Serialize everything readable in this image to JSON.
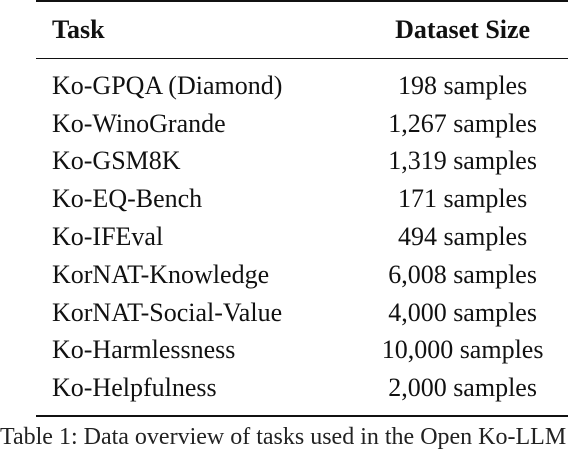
{
  "table": {
    "headers": {
      "task": "Task",
      "size": "Dataset Size"
    },
    "rows": [
      {
        "task": "Ko-GPQA (Diamond)",
        "size": "198 samples"
      },
      {
        "task": "Ko-WinoGrande",
        "size": "1,267 samples"
      },
      {
        "task": "Ko-GSM8K",
        "size": "1,319 samples"
      },
      {
        "task": "Ko-EQ-Bench",
        "size": "171 samples"
      },
      {
        "task": "Ko-IFEval",
        "size": "494 samples"
      },
      {
        "task": "KorNAT-Knowledge",
        "size": "6,008 samples"
      },
      {
        "task": "KorNAT-Social-Value",
        "size": "4,000 samples"
      },
      {
        "task": "Ko-Harmlessness",
        "size": "10,000 samples"
      },
      {
        "task": "Ko-Helpfulness",
        "size": "2,000 samples"
      }
    ]
  },
  "caption": "Table 1: Data overview of tasks used in the Open Ko-LLM"
}
